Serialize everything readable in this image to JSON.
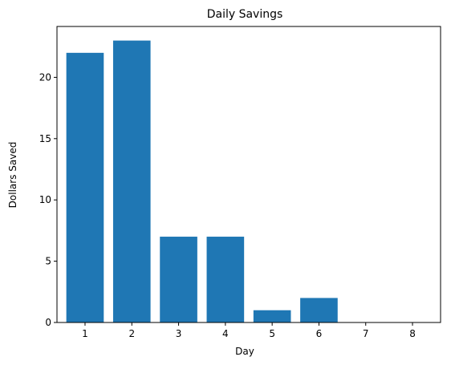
{
  "chart_data": {
    "type": "bar",
    "title": "Daily Savings",
    "xlabel": "Day",
    "ylabel": "Dollars Saved",
    "categories": [
      "1",
      "2",
      "3",
      "4",
      "5",
      "6",
      "7",
      "8"
    ],
    "values": [
      22,
      23,
      7,
      7,
      1,
      2,
      0,
      0
    ],
    "ylim": [
      0,
      24.15
    ],
    "yticks": [
      0,
      5,
      10,
      15,
      20
    ],
    "xlim": [
      0.4,
      8.6
    ],
    "bar_color": "#1f77b4",
    "grid": false,
    "legend": "none"
  }
}
